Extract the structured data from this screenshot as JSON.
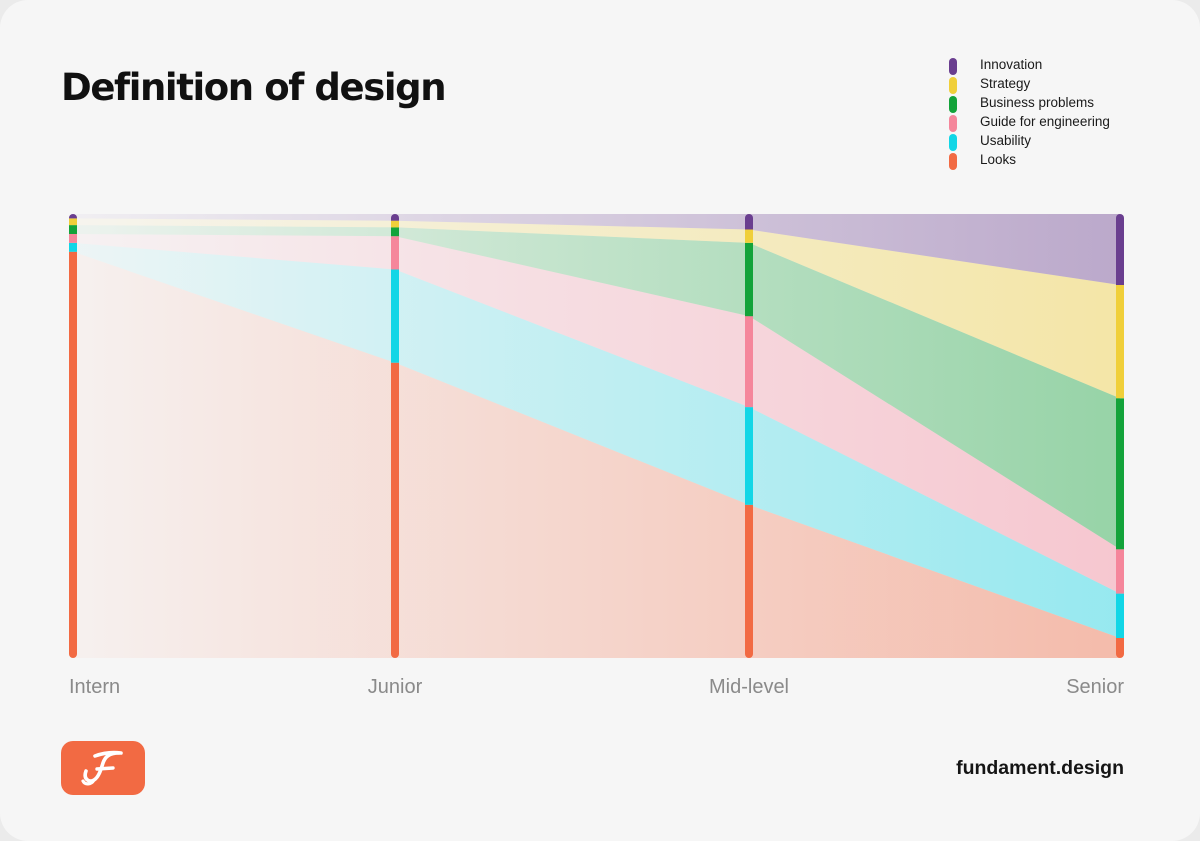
{
  "title": "Definition of design",
  "brand": "fundament.design",
  "logo_mark": "F",
  "chart_data": {
    "type": "area",
    "title": "Definition of design",
    "stacked": true,
    "normalized": true,
    "ylim": [
      0,
      100
    ],
    "grid": false,
    "legend_position": "top-right",
    "categories": [
      "Intern",
      "Junior",
      "Mid-level",
      "Senior"
    ],
    "series": [
      {
        "name": "Looks",
        "color": "#f26a43",
        "values": [
          91.5,
          66.5,
          34.5,
          4.5
        ]
      },
      {
        "name": "Usability",
        "color": "#12d6e6",
        "values": [
          2,
          21,
          22,
          10
        ]
      },
      {
        "name": "Guide for engineering",
        "color": "#f5869b",
        "values": [
          2,
          7.5,
          20.5,
          10
        ]
      },
      {
        "name": "Business problems",
        "color": "#13a33a",
        "values": [
          2,
          2,
          16.5,
          34
        ]
      },
      {
        "name": "Strategy",
        "color": "#f0cf3a",
        "values": [
          1.5,
          1.5,
          3,
          25.5
        ]
      },
      {
        "name": "Innovation",
        "color": "#6a3e8f",
        "values": [
          1,
          1.5,
          3.5,
          16
        ]
      }
    ]
  },
  "legend": [
    {
      "label": "Innovation",
      "color": "#6a3e8f",
      "icon": "bar-swatch"
    },
    {
      "label": "Strategy",
      "color": "#f0cf3a",
      "icon": "bar-swatch"
    },
    {
      "label": "Business problems",
      "color": "#13a33a",
      "icon": "bar-swatch"
    },
    {
      "label": "Guide for engineering",
      "color": "#f5869b",
      "icon": "bar-swatch"
    },
    {
      "label": "Usability",
      "color": "#12d6e6",
      "icon": "bar-swatch"
    },
    {
      "label": "Looks",
      "color": "#f26a43",
      "icon": "bar-swatch"
    }
  ]
}
